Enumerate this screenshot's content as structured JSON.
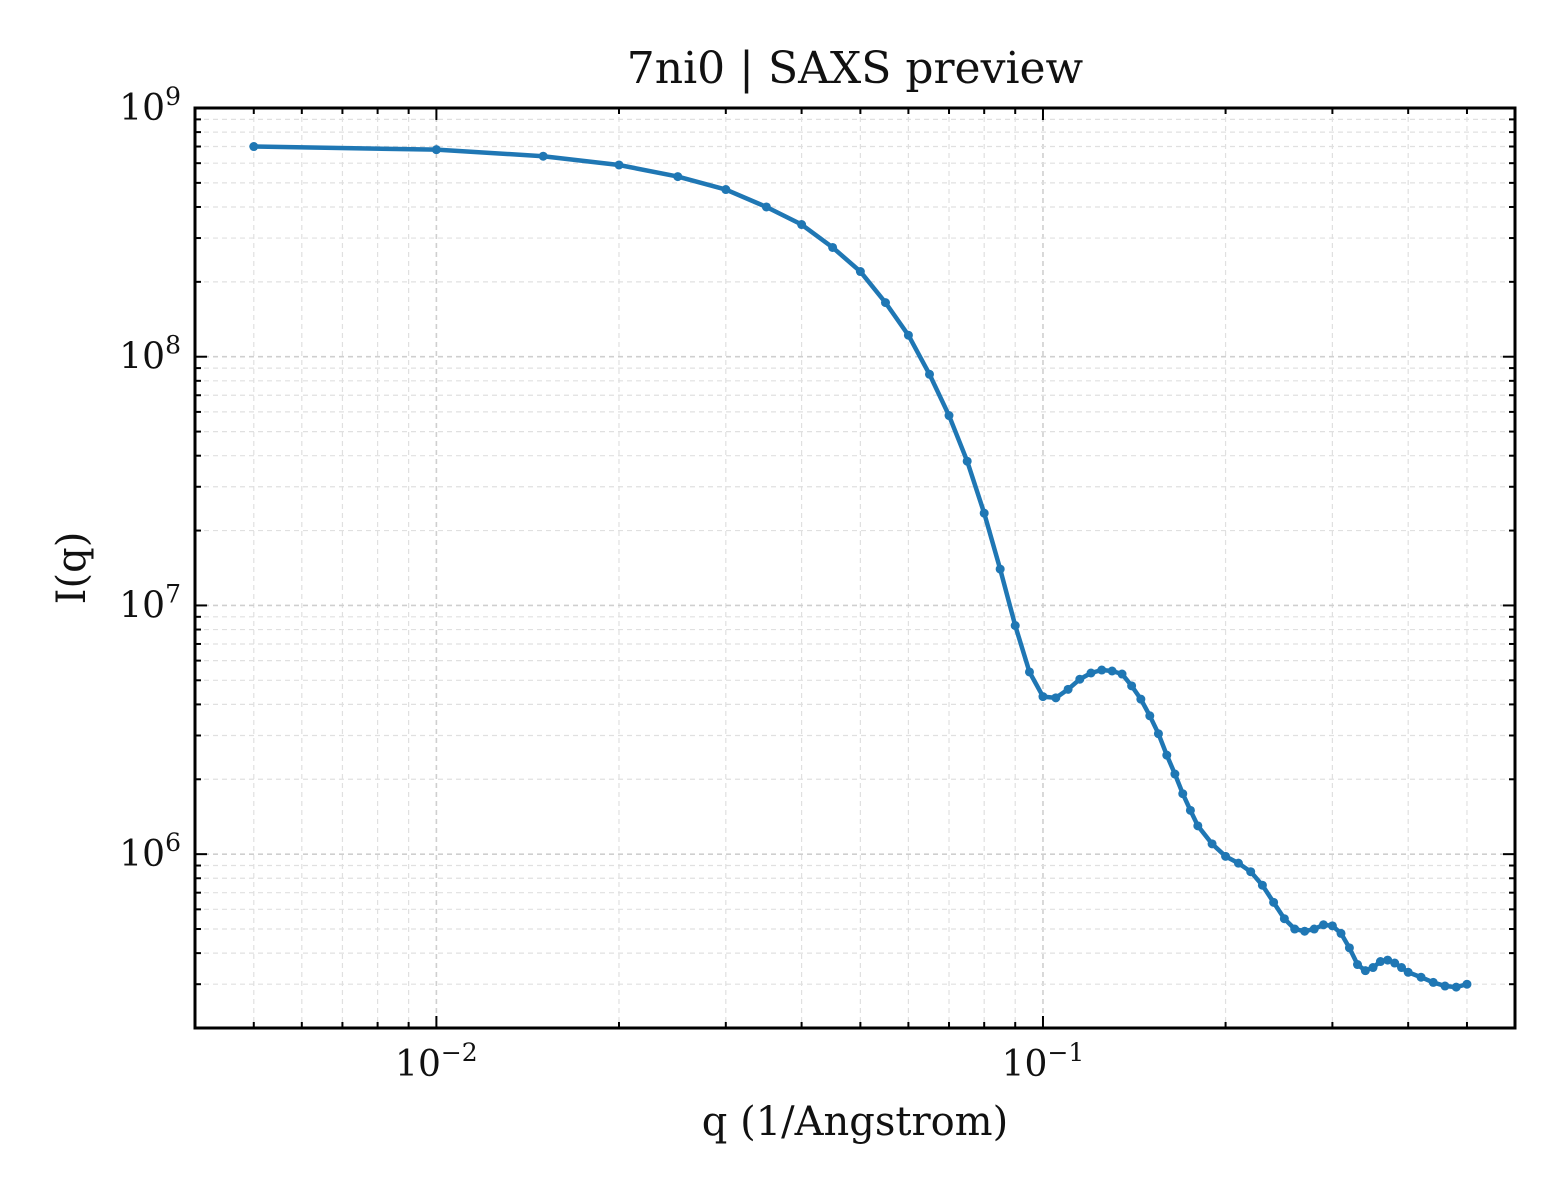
{
  "chart_data": {
    "type": "line",
    "title": "7ni0 | SAXS preview",
    "xlabel": "q (1/Angstrom)",
    "ylabel": "I(q)",
    "xscale": "log",
    "yscale": "log",
    "xlim": [
      0.004,
      0.6
    ],
    "ylim": [
      200000,
      1000000000
    ],
    "grid": true,
    "x_ticks": [
      {
        "value": 0.01,
        "base": "10",
        "exp": "−2"
      },
      {
        "value": 0.1,
        "base": "10",
        "exp": "−1"
      }
    ],
    "y_ticks": [
      {
        "value": 1000000,
        "base": "10",
        "exp": "6"
      },
      {
        "value": 10000000,
        "base": "10",
        "exp": "7"
      },
      {
        "value": 100000000,
        "base": "10",
        "exp": "8"
      },
      {
        "value": 1000000000,
        "base": "10",
        "exp": "9"
      }
    ],
    "series": [
      {
        "color": "#1f77b4",
        "x": [
          0.005,
          0.01,
          0.015,
          0.02,
          0.025,
          0.03,
          0.035,
          0.04,
          0.045,
          0.05,
          0.055,
          0.06,
          0.065,
          0.07,
          0.075,
          0.08,
          0.085,
          0.09,
          0.095,
          0.1,
          0.105,
          0.11,
          0.115,
          0.12,
          0.125,
          0.13,
          0.135,
          0.14,
          0.145,
          0.15,
          0.155,
          0.16,
          0.165,
          0.17,
          0.175,
          0.18,
          0.19,
          0.2,
          0.21,
          0.22,
          0.23,
          0.24,
          0.25,
          0.26,
          0.27,
          0.28,
          0.29,
          0.3,
          0.31,
          0.32,
          0.33,
          0.34,
          0.35,
          0.36,
          0.37,
          0.38,
          0.39,
          0.4,
          0.42,
          0.44,
          0.46,
          0.48,
          0.5
        ],
        "y": [
          700000000,
          680000000,
          640000000,
          590000000,
          530000000,
          470000000,
          400000000,
          340000000,
          275000000,
          220000000,
          165000000,
          122000000,
          85000000,
          58000000,
          38000000,
          23500000,
          14000000,
          8300000,
          5400000,
          4300000,
          4250000,
          4600000,
          5050000,
          5350000,
          5500000,
          5450000,
          5300000,
          4750000,
          4200000,
          3600000,
          3050000,
          2500000,
          2100000,
          1750000,
          1500000,
          1300000,
          1100000,
          980000,
          920000,
          850000,
          750000,
          640000,
          550000,
          500000,
          490000,
          500000,
          520000,
          515000,
          480000,
          420000,
          360000,
          340000,
          350000,
          370000,
          375000,
          365000,
          350000,
          335000,
          320000,
          305000,
          295000,
          292000,
          300000
        ]
      }
    ]
  }
}
